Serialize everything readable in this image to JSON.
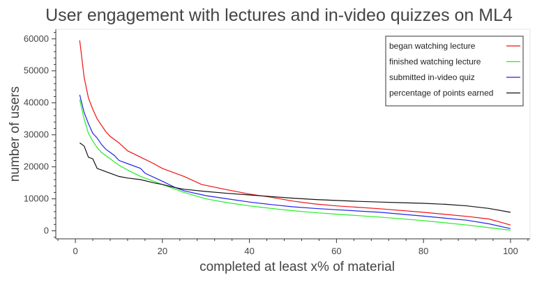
{
  "chart_data": {
    "type": "line",
    "title": "User engagement with lectures and in-video quizzes on ML4",
    "xlabel": "completed at least x% of material",
    "ylabel": "number of users",
    "xlim": [
      -4.5,
      104.5
    ],
    "ylim": [
      -2500,
      63000
    ],
    "x_ticks": [
      0,
      20,
      40,
      60,
      80,
      100
    ],
    "y_ticks": [
      0,
      10000,
      20000,
      30000,
      40000,
      50000,
      60000
    ],
    "grid": false,
    "legend_position": "top-right",
    "series": [
      {
        "name": "began watching lecture",
        "color": "#ee1111",
        "points": [
          [
            1,
            59500
          ],
          [
            2,
            48000
          ],
          [
            3,
            41500
          ],
          [
            4,
            38000
          ],
          [
            5,
            35000
          ],
          [
            6,
            33000
          ],
          [
            7,
            31000
          ],
          [
            8,
            29500
          ],
          [
            10,
            27500
          ],
          [
            12,
            25000
          ],
          [
            15,
            23000
          ],
          [
            18,
            21000
          ],
          [
            20,
            19500
          ],
          [
            25,
            17000
          ],
          [
            29,
            14500
          ],
          [
            35,
            12800
          ],
          [
            40,
            11500
          ],
          [
            45,
            10500
          ],
          [
            50,
            9300
          ],
          [
            55,
            8400
          ],
          [
            60,
            7800
          ],
          [
            70,
            6900
          ],
          [
            80,
            5800
          ],
          [
            90,
            4500
          ],
          [
            95,
            3700
          ],
          [
            98,
            2600
          ],
          [
            100,
            1800
          ]
        ]
      },
      {
        "name": "finished watching lecture",
        "color": "#22ee22",
        "points": [
          [
            1,
            41000
          ],
          [
            2,
            35000
          ],
          [
            3,
            30500
          ],
          [
            4,
            28000
          ],
          [
            5,
            26000
          ],
          [
            6,
            24500
          ],
          [
            8,
            22500
          ],
          [
            10,
            20500
          ],
          [
            12,
            19000
          ],
          [
            15,
            17000
          ],
          [
            18,
            15500
          ],
          [
            20,
            14500
          ],
          [
            25,
            12000
          ],
          [
            30,
            10000
          ],
          [
            35,
            8800
          ],
          [
            40,
            7800
          ],
          [
            45,
            7000
          ],
          [
            50,
            6300
          ],
          [
            55,
            5700
          ],
          [
            60,
            5200
          ],
          [
            70,
            4300
          ],
          [
            80,
            3200
          ],
          [
            90,
            1800
          ],
          [
            95,
            1000
          ],
          [
            100,
            200
          ]
        ]
      },
      {
        "name": "submitted in-video quiz",
        "color": "#2222ee",
        "points": [
          [
            1,
            42500
          ],
          [
            2,
            37000
          ],
          [
            3,
            33500
          ],
          [
            4,
            30500
          ],
          [
            5,
            29000
          ],
          [
            6,
            27000
          ],
          [
            7,
            25500
          ],
          [
            8,
            24500
          ],
          [
            9,
            23500
          ],
          [
            10,
            22000
          ],
          [
            12,
            21000
          ],
          [
            15,
            19500
          ],
          [
            16,
            18000
          ],
          [
            20,
            15500
          ],
          [
            23,
            13500
          ],
          [
            25,
            12500
          ],
          [
            30,
            11000
          ],
          [
            35,
            10000
          ],
          [
            40,
            9000
          ],
          [
            45,
            8200
          ],
          [
            50,
            7500
          ],
          [
            55,
            7000
          ],
          [
            60,
            6600
          ],
          [
            70,
            5800
          ],
          [
            80,
            4600
          ],
          [
            90,
            3300
          ],
          [
            95,
            2200
          ],
          [
            100,
            700
          ]
        ]
      },
      {
        "name": "percentage of points earned",
        "color": "#111111",
        "points": [
          [
            1,
            27500
          ],
          [
            2,
            26500
          ],
          [
            3,
            23000
          ],
          [
            4,
            22500
          ],
          [
            5,
            19500
          ],
          [
            6,
            19000
          ],
          [
            8,
            18000
          ],
          [
            10,
            17000
          ],
          [
            12,
            16500
          ],
          [
            15,
            16000
          ],
          [
            18,
            15000
          ],
          [
            20,
            14500
          ],
          [
            23,
            13500
          ],
          [
            25,
            13000
          ],
          [
            30,
            12300
          ],
          [
            35,
            11700
          ],
          [
            40,
            11200
          ],
          [
            45,
            10700
          ],
          [
            50,
            10200
          ],
          [
            55,
            9800
          ],
          [
            60,
            9500
          ],
          [
            65,
            9200
          ],
          [
            70,
            9000
          ],
          [
            75,
            8800
          ],
          [
            80,
            8600
          ],
          [
            85,
            8300
          ],
          [
            90,
            7800
          ],
          [
            95,
            7000
          ],
          [
            100,
            5800
          ]
        ]
      }
    ]
  }
}
